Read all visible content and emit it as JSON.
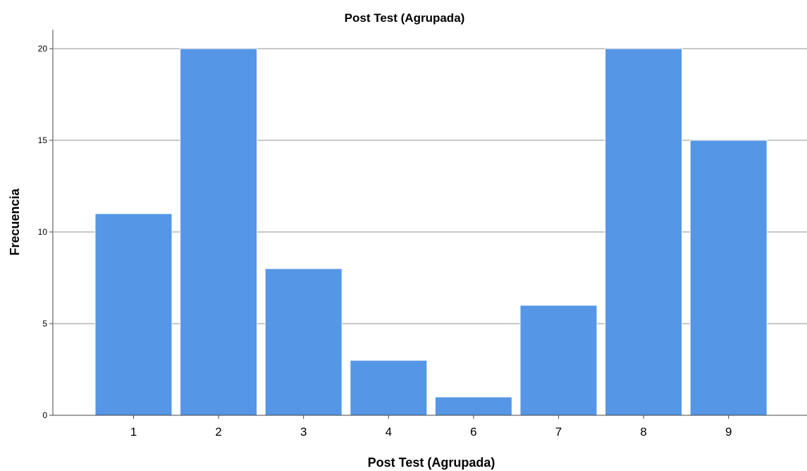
{
  "chart_data": {
    "type": "bar",
    "title": "Post Test (Agrupada)",
    "xlabel": "Post Test (Agrupada)",
    "ylabel": "Frecuencia",
    "categories": [
      "1",
      "2",
      "3",
      "4",
      "6",
      "7",
      "8",
      "9"
    ],
    "values": [
      11,
      20,
      8,
      3,
      1,
      6,
      20,
      15
    ],
    "ylim": [
      0,
      21
    ],
    "yticks": [
      "0",
      "5",
      "10",
      "15",
      "20"
    ],
    "grid": true,
    "bar_color": "#5596e6",
    "bar_edge_color": "#ffffff",
    "grid_color": "#c8c8c8"
  }
}
